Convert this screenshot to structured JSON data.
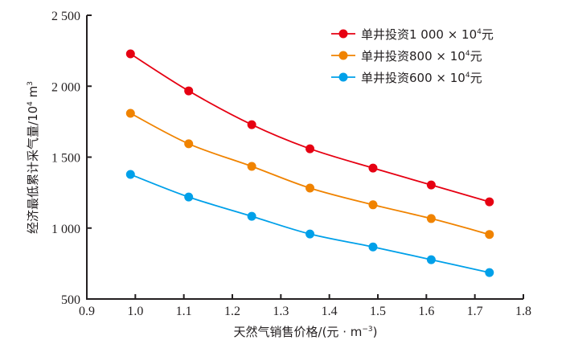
{
  "chart_data": {
    "type": "line",
    "title": "",
    "xlabel": "天然气销售价格/(元·m⁻³)",
    "xlabel_parts": {
      "main": "天然气销售价格/(元 · m",
      "sup": "−3",
      "tail": ")"
    },
    "ylabel": "经济最低累计采气量/10⁴ m³",
    "ylabel_parts": {
      "main": "经济最低累计采气量/10",
      "sup1": "4",
      "mid": " m",
      "sup2": "3"
    },
    "xlim": [
      0.9,
      1.8
    ],
    "ylim": [
      500,
      2500
    ],
    "x_ticks": [
      0.9,
      1.0,
      1.1,
      1.2,
      1.3,
      1.4,
      1.5,
      1.6,
      1.7,
      1.8
    ],
    "x_tick_labels": [
      "0.9",
      "1.0",
      "1.1",
      "1.2",
      "1.3",
      "1.4",
      "1.5",
      "1.6",
      "1.7",
      "1.8"
    ],
    "y_ticks": [
      500,
      1000,
      1500,
      2000,
      2500
    ],
    "y_tick_labels": [
      "500",
      "1 000",
      "1 500",
      "2 000",
      "2 500"
    ],
    "grid": false,
    "legend_position": "top-right",
    "x": [
      0.99,
      1.11,
      1.24,
      1.36,
      1.49,
      1.61,
      1.73
    ],
    "series": [
      {
        "name": "单井投资1 000 × 10⁴元",
        "legend_main": "单井投资1 000 × 10",
        "legend_sup": "4",
        "legend_tail": "元",
        "color": "#e60012",
        "values": [
          2228,
          1967,
          1729,
          1559,
          1423,
          1304,
          1185
        ]
      },
      {
        "name": "单井投资800 × 10⁴元",
        "legend_main": "单井投资800 × 10",
        "legend_sup": "4",
        "legend_tail": "元",
        "color": "#f08300",
        "values": [
          1809,
          1594,
          1435,
          1282,
          1164,
          1067,
          955
        ]
      },
      {
        "name": "单井投资600 × 10⁴元",
        "legend_main": "单井投资600 × 10",
        "legend_sup": "4",
        "legend_tail": "元",
        "color": "#00a0e9",
        "values": [
          1378,
          1219,
          1083,
          958,
          867,
          777,
          686
        ]
      }
    ]
  }
}
